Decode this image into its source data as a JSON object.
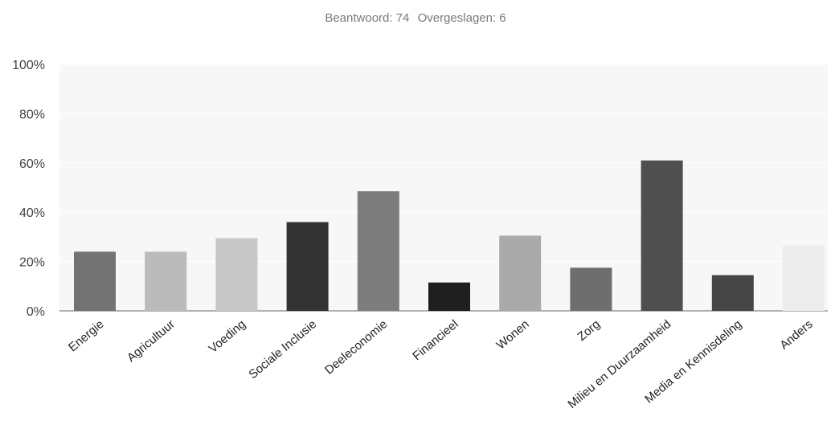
{
  "header": {
    "answered": "Beantwoord: 74",
    "skipped": "Overgeslagen: 6"
  },
  "chart_data": {
    "type": "bar",
    "categories": [
      "Energie",
      "Agricultuur",
      "Voeding",
      "Sociale Inclusie",
      "Deeleconomie",
      "Financieel",
      "Wonen",
      "Zorg",
      "Milieu en Duurzaamheid",
      "Media en Kennisdeling",
      "Anders"
    ],
    "values": [
      24,
      24,
      29.5,
      36,
      48.5,
      11.5,
      30.5,
      17.5,
      61,
      14.5,
      26.5
    ],
    "colors": [
      "#737373",
      "#bbbbbb",
      "#c7c7c7",
      "#333333",
      "#7d7d7d",
      "#1e1e1e",
      "#aaaaaa",
      "#6e6e6e",
      "#4f4f4f",
      "#454545",
      "#ececec"
    ],
    "ylim": [
      0,
      100
    ],
    "yticks": [
      "0%",
      "20%",
      "40%",
      "60%",
      "80%",
      "100%"
    ],
    "ytick_values": [
      0,
      20,
      40,
      60,
      80,
      100
    ],
    "grid": true,
    "plot_background": "#f7f7f7"
  }
}
